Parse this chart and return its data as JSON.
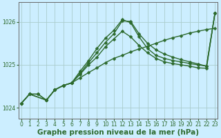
{
  "xlabel": "Graphe pression niveau de la mer (hPa)",
  "background_color": "#cceeff",
  "grid_color": "#aacccc",
  "line_color": "#2d6a2d",
  "xlim": [
    -0.3,
    23.3
  ],
  "ylim": [
    1023.75,
    1026.45
  ],
  "yticks": [
    1024,
    1025,
    1026
  ],
  "xticks": [
    0,
    1,
    2,
    3,
    4,
    5,
    6,
    7,
    8,
    9,
    10,
    11,
    12,
    13,
    14,
    15,
    16,
    17,
    18,
    19,
    20,
    21,
    22,
    23
  ],
  "line1_x": [
    0,
    1,
    2,
    3,
    4,
    5,
    6,
    7,
    8,
    9,
    10,
    11,
    12,
    13,
    14,
    15,
    16,
    17,
    18,
    19,
    20,
    21,
    22,
    23
  ],
  "line1_y": [
    1024.1,
    1024.32,
    1024.32,
    1024.18,
    1024.42,
    1024.52,
    1024.58,
    1024.7,
    1024.82,
    1024.93,
    1025.05,
    1025.15,
    1025.22,
    1025.3,
    1025.37,
    1025.43,
    1025.5,
    1025.57,
    1025.63,
    1025.68,
    1025.74,
    1025.78,
    1025.82,
    1025.85
  ],
  "line2_x": [
    0,
    1,
    2,
    3,
    4,
    5,
    6,
    7,
    8,
    9,
    10,
    11,
    12,
    13,
    14,
    15,
    16,
    17,
    18,
    19,
    20,
    21,
    22,
    23
  ],
  "line2_y": [
    1024.1,
    1024.32,
    1024.32,
    1024.18,
    1024.42,
    1024.52,
    1024.58,
    1024.78,
    1025.0,
    1025.18,
    1025.42,
    1025.6,
    1025.78,
    1025.65,
    1025.45,
    1025.28,
    1025.15,
    1025.07,
    1025.03,
    1025.0,
    1024.97,
    1024.93,
    1024.92,
    1026.2
  ],
  "line3_x": [
    0,
    1,
    3,
    4,
    5,
    6,
    7,
    8,
    9,
    10,
    11,
    12,
    13,
    14,
    15,
    16,
    17,
    18,
    19,
    20,
    21,
    22,
    23
  ],
  "line3_y": [
    1024.1,
    1024.32,
    1024.18,
    1024.42,
    1024.52,
    1024.58,
    1024.8,
    1025.05,
    1025.28,
    1025.52,
    1025.72,
    1026.02,
    1026.01,
    1025.72,
    1025.5,
    1025.35,
    1025.25,
    1025.18,
    1025.12,
    1025.07,
    1025.02,
    1024.97,
    1026.2
  ],
  "line4_x": [
    0,
    1,
    3,
    4,
    5,
    6,
    7,
    8,
    9,
    10,
    11,
    12,
    13,
    14,
    15,
    16,
    17,
    18,
    19,
    20,
    21,
    22,
    23
  ],
  "line4_y": [
    1024.1,
    1024.32,
    1024.18,
    1024.42,
    1024.52,
    1024.58,
    1024.85,
    1025.1,
    1025.38,
    1025.62,
    1025.8,
    1026.05,
    1025.98,
    1025.65,
    1025.38,
    1025.22,
    1025.15,
    1025.1,
    1025.07,
    1025.03,
    1025.0,
    1024.97,
    1026.2
  ],
  "marker": "D",
  "markersize": 2.5,
  "linewidth": 1.0,
  "tick_fontsize": 5.5,
  "xlabel_fontsize": 7.5,
  "figsize": [
    3.2,
    2.0
  ],
  "dpi": 100
}
